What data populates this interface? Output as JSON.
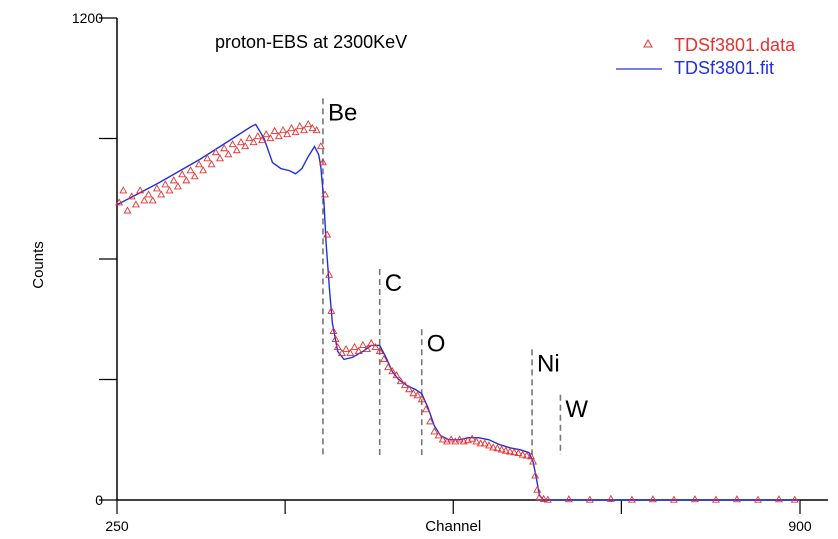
{
  "chart_data": {
    "type": "scatter",
    "title": "proton-EBS at 2300KeV",
    "xlabel": "Channel",
    "ylabel": "Counts",
    "xlim": [
      250,
      900
    ],
    "ylim": [
      0,
      1200
    ],
    "x_ticks": [
      250,
      410,
      570,
      730,
      900
    ],
    "x_tick_labels": [
      "250",
      "",
      "Channel",
      "",
      "900"
    ],
    "y_ticks": [
      0,
      300,
      600,
      900,
      1200
    ],
    "y_tick_labels": [
      "0",
      "",
      "",
      "",
      "1200"
    ],
    "legend_position": "top-right",
    "series": [
      {
        "name": "TDSf3801.data",
        "kind": "markers",
        "marker": "triangle",
        "color": "#e83030",
        "points": [
          [
            252,
            740
          ],
          [
            256,
            770
          ],
          [
            260,
            720
          ],
          [
            264,
            755
          ],
          [
            268,
            735
          ],
          [
            272,
            770
          ],
          [
            276,
            745
          ],
          [
            280,
            760
          ],
          [
            284,
            745
          ],
          [
            288,
            775
          ],
          [
            292,
            760
          ],
          [
            296,
            785
          ],
          [
            300,
            770
          ],
          [
            304,
            795
          ],
          [
            308,
            780
          ],
          [
            312,
            810
          ],
          [
            316,
            795
          ],
          [
            320,
            820
          ],
          [
            324,
            805
          ],
          [
            328,
            835
          ],
          [
            332,
            820
          ],
          [
            336,
            850
          ],
          [
            340,
            835
          ],
          [
            344,
            865
          ],
          [
            348,
            850
          ],
          [
            352,
            875
          ],
          [
            356,
            860
          ],
          [
            360,
            885
          ],
          [
            364,
            870
          ],
          [
            368,
            890
          ],
          [
            372,
            880
          ],
          [
            376,
            900
          ],
          [
            380,
            890
          ],
          [
            384,
            905
          ],
          [
            388,
            895
          ],
          [
            392,
            910
          ],
          [
            396,
            900
          ],
          [
            400,
            918
          ],
          [
            404,
            905
          ],
          [
            408,
            920
          ],
          [
            412,
            910
          ],
          [
            416,
            925
          ],
          [
            420,
            915
          ],
          [
            424,
            930
          ],
          [
            428,
            920
          ],
          [
            432,
            935
          ],
          [
            436,
            925
          ],
          [
            440,
            920
          ],
          [
            444,
            880
          ],
          [
            446,
            840
          ],
          [
            448,
            760
          ],
          [
            450,
            660
          ],
          [
            452,
            560
          ],
          [
            454,
            470
          ],
          [
            456,
            420
          ],
          [
            458,
            400
          ],
          [
            460,
            380
          ],
          [
            464,
            365
          ],
          [
            468,
            375
          ],
          [
            472,
            365
          ],
          [
            476,
            380
          ],
          [
            480,
            370
          ],
          [
            484,
            385
          ],
          [
            488,
            375
          ],
          [
            492,
            390
          ],
          [
            496,
            380
          ],
          [
            500,
            370
          ],
          [
            504,
            350
          ],
          [
            508,
            330
          ],
          [
            512,
            320
          ],
          [
            516,
            310
          ],
          [
            520,
            295
          ],
          [
            524,
            285
          ],
          [
            528,
            275
          ],
          [
            532,
            265
          ],
          [
            536,
            260
          ],
          [
            540,
            250
          ],
          [
            544,
            225
          ],
          [
            548,
            195
          ],
          [
            552,
            170
          ],
          [
            556,
            160
          ],
          [
            560,
            150
          ],
          [
            564,
            145
          ],
          [
            568,
            150
          ],
          [
            572,
            145
          ],
          [
            576,
            150
          ],
          [
            580,
            145
          ],
          [
            584,
            148
          ],
          [
            588,
            152
          ],
          [
            592,
            145
          ],
          [
            596,
            140
          ],
          [
            600,
            140
          ],
          [
            604,
            135
          ],
          [
            608,
            130
          ],
          [
            612,
            128
          ],
          [
            616,
            125
          ],
          [
            620,
            122
          ],
          [
            624,
            120
          ],
          [
            628,
            118
          ],
          [
            632,
            116
          ],
          [
            636,
            112
          ],
          [
            640,
            110
          ],
          [
            644,
            108
          ],
          [
            646,
            95
          ],
          [
            648,
            60
          ],
          [
            650,
            25
          ],
          [
            652,
            6
          ],
          [
            656,
            2
          ],
          [
            660,
            0
          ],
          [
            680,
            1
          ],
          [
            700,
            0
          ],
          [
            720,
            2
          ],
          [
            740,
            0
          ],
          [
            760,
            1
          ],
          [
            780,
            0
          ],
          [
            800,
            1
          ],
          [
            820,
            0
          ],
          [
            840,
            1
          ],
          [
            860,
            0
          ],
          [
            880,
            1
          ],
          [
            895,
            0
          ]
        ]
      },
      {
        "name": "TDSf3801.fit",
        "kind": "line",
        "color": "#2030e0",
        "points": [
          [
            250,
            735
          ],
          [
            290,
            790
          ],
          [
            330,
            850
          ],
          [
            360,
            900
          ],
          [
            378,
            930
          ],
          [
            382,
            935
          ],
          [
            390,
            900
          ],
          [
            398,
            840
          ],
          [
            406,
            825
          ],
          [
            414,
            820
          ],
          [
            420,
            812
          ],
          [
            426,
            825
          ],
          [
            432,
            855
          ],
          [
            438,
            880
          ],
          [
            442,
            860
          ],
          [
            444,
            830
          ],
          [
            447,
            740
          ],
          [
            449,
            640
          ],
          [
            452,
            530
          ],
          [
            455,
            440
          ],
          [
            460,
            370
          ],
          [
            466,
            350
          ],
          [
            474,
            355
          ],
          [
            484,
            370
          ],
          [
            492,
            385
          ],
          [
            500,
            385
          ],
          [
            506,
            355
          ],
          [
            512,
            320
          ],
          [
            518,
            300
          ],
          [
            526,
            285
          ],
          [
            534,
            275
          ],
          [
            540,
            265
          ],
          [
            546,
            230
          ],
          [
            552,
            185
          ],
          [
            558,
            160
          ],
          [
            566,
            150
          ],
          [
            576,
            150
          ],
          [
            584,
            155
          ],
          [
            594,
            155
          ],
          [
            604,
            150
          ],
          [
            614,
            138
          ],
          [
            624,
            130
          ],
          [
            634,
            125
          ],
          [
            642,
            118
          ],
          [
            646,
            95
          ],
          [
            649,
            55
          ],
          [
            652,
            12
          ],
          [
            656,
            0
          ],
          [
            900,
            0
          ]
        ]
      }
    ],
    "annotations": [
      {
        "label": "Be",
        "x": 446,
        "y_top": 1000
      },
      {
        "label": "C",
        "x": 500,
        "y_top": 575
      },
      {
        "label": "O",
        "x": 540,
        "y_top": 425
      },
      {
        "label": "Ni",
        "x": 645,
        "y_top": 375
      },
      {
        "label": "W",
        "x": 672,
        "y_top": 262
      }
    ]
  }
}
